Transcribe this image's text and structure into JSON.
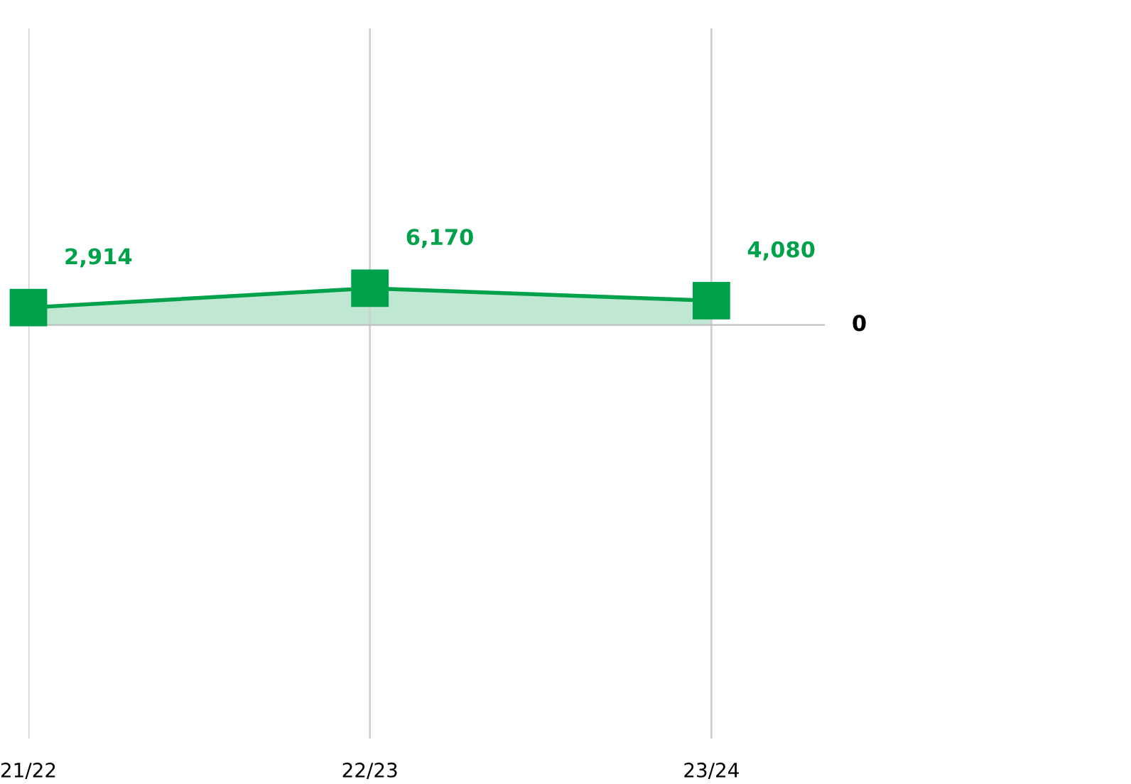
{
  "chart_data": {
    "type": "area",
    "categories": [
      "21/22",
      "22/23",
      "23/24"
    ],
    "series": [
      {
        "color": "#00a14b",
        "values": [
          2914,
          6170,
          4080
        ],
        "value_labels": [
          "2,914",
          "6,170",
          "4,080"
        ]
      }
    ],
    "annotations": [
      "0"
    ],
    "grid": "x",
    "marker": "square",
    "line_style": "solid"
  }
}
